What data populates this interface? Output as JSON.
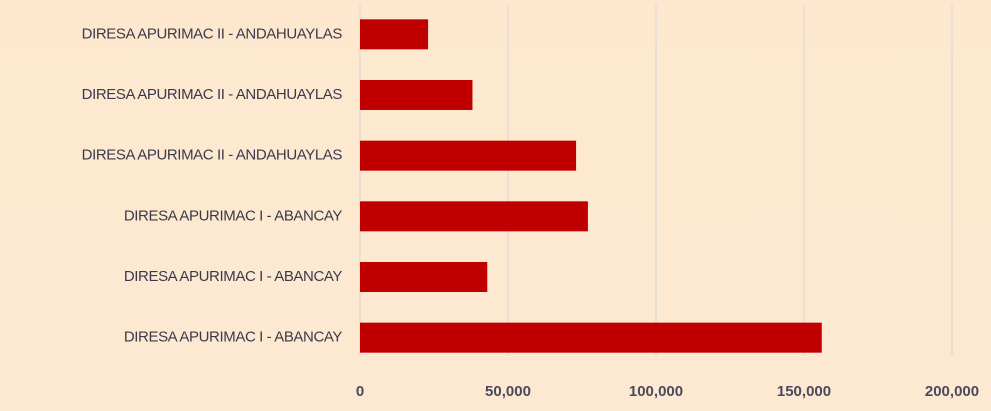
{
  "chart_data": {
    "type": "barh",
    "categories": [
      "DIRESA APURIMAC II - ANDAHUAYLAS",
      "DIRESA APURIMAC II - ANDAHUAYLAS",
      "DIRESA APURIMAC II - ANDAHUAYLAS",
      "DIRESA APURIMAC I - ABANCAY",
      "DIRESA APURIMAC I - ABANCAY",
      "DIRESA APURIMAC I - ABANCAY"
    ],
    "values": [
      23000,
      38000,
      73000,
      77000,
      43000,
      156000
    ],
    "color": "#c00000",
    "xlim": [
      0,
      200000
    ],
    "xticks": [
      0,
      {
        "value": 50000,
        "label": "50,000"
      },
      {
        "value": 100000,
        "label": "100,000"
      },
      {
        "value": 150000,
        "label": "150,000"
      },
      {
        "value": 200000,
        "label": "200,000"
      }
    ],
    "grid": true
  }
}
